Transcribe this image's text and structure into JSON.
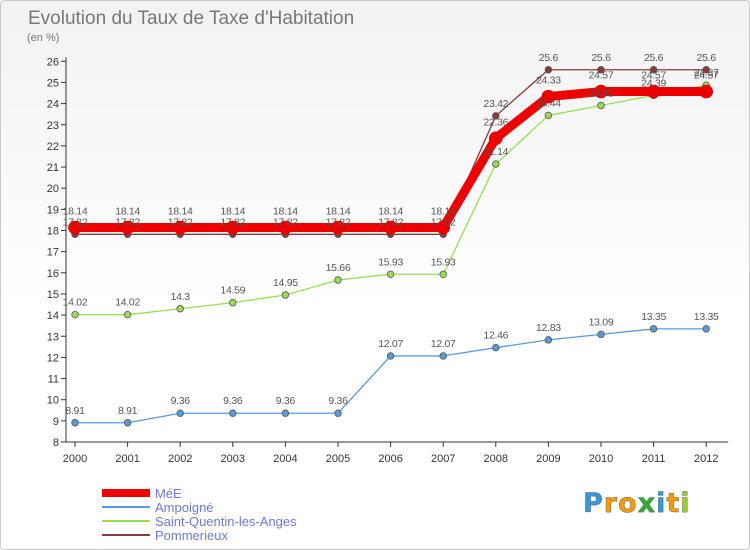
{
  "chart_data": {
    "type": "line",
    "title": "Evolution du Taux de Taxe d'Habitation",
    "subtitle": "(en %)",
    "x": [
      "2000",
      "2001",
      "2002",
      "2003",
      "2004",
      "2005",
      "2006",
      "2007",
      "2008",
      "2009",
      "2010",
      "2011",
      "2012"
    ],
    "ylim": [
      8,
      26
    ],
    "yticks": [
      8,
      9,
      10,
      11,
      12,
      13,
      14,
      15,
      16,
      17,
      18,
      19,
      20,
      21,
      22,
      23,
      24,
      25,
      26
    ],
    "grid": false,
    "legend_position": "bottom-left",
    "series": [
      {
        "name": "MéE",
        "color": "#ee0000",
        "values": [
          18.14,
          18.14,
          18.14,
          18.14,
          18.14,
          18.14,
          18.14,
          18.14,
          22.36,
          24.33,
          24.57,
          24.57,
          24.57
        ],
        "labels": [
          "18.14",
          "18.14",
          "18.14",
          "18.14",
          "18.14",
          "18.14",
          "18.14",
          "18.14",
          "22.36",
          "24.33",
          "24.57",
          "24.57",
          "24.57"
        ]
      },
      {
        "name": "Ampoigné",
        "color": "#5b9bd5",
        "values": [
          8.91,
          8.91,
          9.36,
          9.36,
          9.36,
          9.36,
          12.07,
          12.07,
          12.46,
          12.83,
          13.09,
          13.35,
          13.35
        ],
        "labels": [
          "8.91",
          "8.91",
          "9.36",
          "9.36",
          "9.36",
          "9.36",
          "12.07",
          "12.07",
          "12.46",
          "12.83",
          "13.09",
          "13.35",
          "13.35"
        ]
      },
      {
        "name": "Saint-Quentin-les-Anges",
        "color": "#99dd55",
        "values": [
          14.02,
          14.02,
          14.3,
          14.59,
          14.95,
          15.66,
          15.93,
          15.93,
          21.14,
          23.44,
          23.91,
          24.39,
          24.87
        ],
        "labels": [
          "14.02",
          "14.02",
          "14.3",
          "14.59",
          "14.95",
          "15.66",
          "15.93",
          "15.93",
          "21.14",
          "23.44",
          "23.91",
          "24.39",
          "24.87"
        ]
      },
      {
        "name": "Pommerieux",
        "color": "#8b3a3a",
        "values": [
          17.82,
          17.82,
          17.82,
          17.82,
          17.82,
          17.82,
          17.82,
          17.82,
          23.42,
          25.6,
          25.6,
          25.6,
          25.6
        ],
        "labels": [
          "17.82",
          "17.82",
          "17.82",
          "17.82",
          "17.82",
          "17.82",
          "17.82",
          "17.82",
          "23.42",
          "25.6",
          "25.6",
          "25.6",
          "25.6"
        ]
      }
    ]
  },
  "logo": {
    "letters": [
      "P",
      "r",
      "o",
      "x",
      "i",
      "t",
      "i"
    ],
    "colors": [
      "#3399dd",
      "#ff9900",
      "#ff9900",
      "#33aa33",
      "#3399dd",
      "#ff9900",
      "#99cc33"
    ]
  }
}
